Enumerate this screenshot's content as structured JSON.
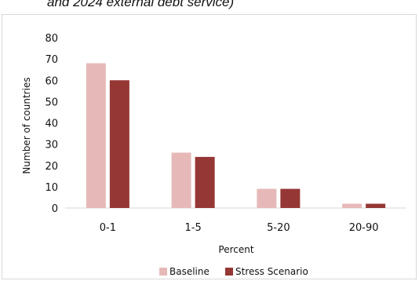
{
  "title_fragment": "and 2024 external debt service)",
  "chart_data": {
    "type": "bar",
    "categories": [
      "0-1",
      "1-5",
      "5-20",
      "20-90"
    ],
    "series": [
      {
        "name": "Baseline",
        "values": [
          68,
          26,
          9,
          2
        ],
        "color": "#e6b9b8"
      },
      {
        "name": "Stress Scenario",
        "values": [
          60,
          24,
          9,
          2
        ],
        "color": "#953735"
      }
    ],
    "xlabel": "Percent",
    "ylabel": "Number of countries",
    "ylim": [
      0,
      80
    ],
    "yticks": [
      0,
      10,
      20,
      30,
      40,
      50,
      60,
      70,
      80
    ],
    "grid": false,
    "legend_position": "bottom"
  }
}
